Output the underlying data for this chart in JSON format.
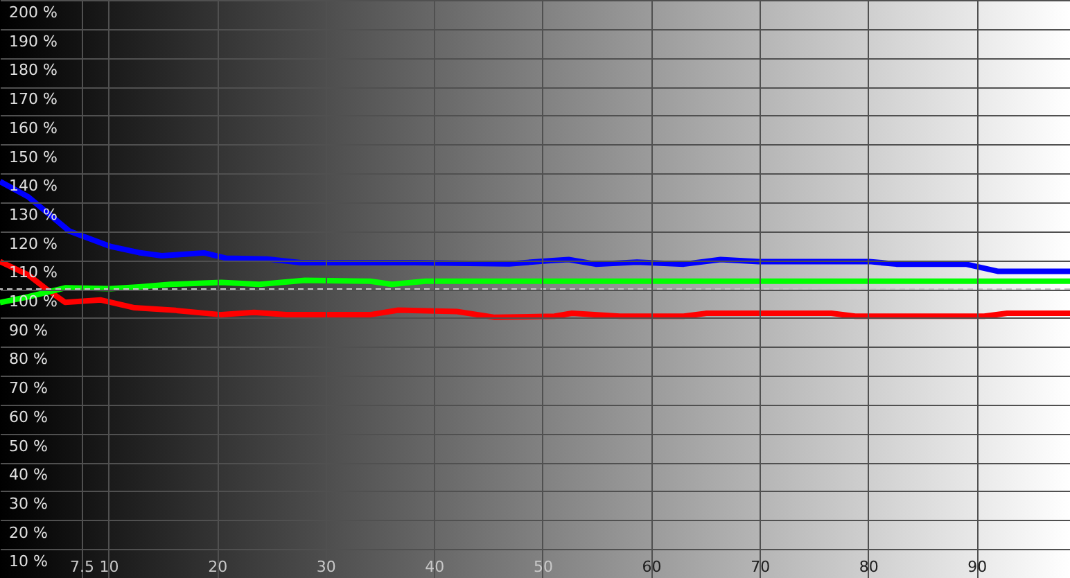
{
  "chart_data": {
    "type": "line",
    "xlim": [
      0,
      98.6
    ],
    "ylim": [
      0,
      200
    ],
    "xticks": [
      {
        "value": 7.5,
        "label": "7.5"
      },
      10,
      20,
      30,
      40,
      50,
      60,
      70,
      80,
      90
    ],
    "yticks": [
      {
        "value": 10,
        "label": "10 %"
      },
      {
        "value": 20,
        "label": "20 %"
      },
      {
        "value": 30,
        "label": "30 %"
      },
      {
        "value": 40,
        "label": "40 %"
      },
      {
        "value": 50,
        "label": "50 %"
      },
      {
        "value": 60,
        "label": "60 %"
      },
      {
        "value": 70,
        "label": "70 %"
      },
      {
        "value": 80,
        "label": "80 %"
      },
      {
        "value": 90,
        "label": "90 %"
      },
      {
        "value": 100,
        "label": "100 %"
      },
      {
        "value": 110,
        "label": "110 %"
      },
      {
        "value": 120,
        "label": "120 %"
      },
      {
        "value": 130,
        "label": "130 %"
      },
      {
        "value": 140,
        "label": "140 %"
      },
      {
        "value": 150,
        "label": "150 %"
      },
      {
        "value": 160,
        "label": "160 %"
      },
      {
        "value": 170,
        "label": "170 %"
      },
      {
        "value": 180,
        "label": "180 %"
      },
      {
        "value": 190,
        "label": "190 %"
      },
      {
        "value": 200,
        "label": "200 %"
      }
    ],
    "grid": true,
    "marker": "none",
    "line_style": "solid",
    "ref_lines": [
      {
        "axis": "y",
        "value": 100,
        "color": "#c8c8c8",
        "line_style": "dashed"
      }
    ],
    "series": [
      {
        "color": "#0000ff",
        "x": [
          0,
          2.6,
          6.4,
          10.2,
          12.8,
          14.9,
          18.8,
          20.8,
          24.6,
          27.7,
          38.3,
          46.9,
          50.7,
          52.4,
          54.9,
          58.7,
          63.0,
          66.4,
          69.9,
          80.1,
          82.6,
          89.0,
          92.0,
          98.6
        ],
        "values": [
          137.2,
          131.9,
          120.0,
          114.7,
          112.6,
          111.5,
          112.5,
          110.7,
          110.4,
          109.1,
          109.1,
          108.7,
          109.8,
          110.2,
          108.6,
          109.3,
          108.6,
          110.2,
          109.5,
          109.5,
          108.6,
          108.6,
          106.1,
          106.1
        ]
      },
      {
        "color": "#ff0000",
        "x": [
          0,
          2.6,
          4.2,
          6.0,
          9.3,
          12.4,
          16.2,
          20.4,
          23.4,
          26.4,
          34.1,
          36.7,
          42.1,
          45.6,
          51.1,
          52.7,
          57.1,
          63.0,
          65.1,
          76.6,
          78.8,
          90.7,
          92.8,
          98.6
        ],
        "values": [
          109.5,
          104.9,
          100.2,
          95.4,
          96.2,
          93.5,
          92.6,
          91.1,
          91.9,
          91.1,
          91.1,
          92.7,
          92.2,
          90.2,
          90.6,
          91.6,
          90.6,
          90.6,
          91.6,
          91.6,
          90.6,
          90.6,
          91.6,
          91.6
        ]
      },
      {
        "color": "#00ff00",
        "x": [
          0,
          2.6,
          6.0,
          10.2,
          12.8,
          15.7,
          20.4,
          23.9,
          28.1,
          34.1,
          36.1,
          39.2,
          60.0,
          80.0,
          98.6
        ],
        "values": [
          95.3,
          97.3,
          100.4,
          100.1,
          100.7,
          101.6,
          102.3,
          101.6,
          103.0,
          102.7,
          101.6,
          102.7,
          102.7,
          102.7,
          102.7
        ]
      }
    ]
  }
}
